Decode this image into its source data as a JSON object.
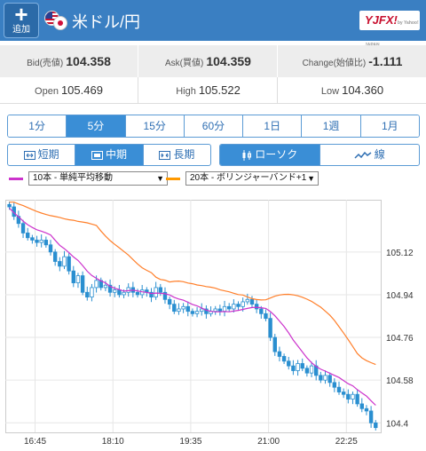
{
  "header": {
    "add_label": "追加",
    "pair_title": "米ドル/円",
    "logo_text": "YJFX!",
    "logo_sub": "by Yahoo! JAPAN",
    "bg_color": "#3a7fc2"
  },
  "quote": {
    "bid_label": "Bid(売値)",
    "bid_value": "104.358",
    "ask_label": "Ask(買値)",
    "ask_value": "104.359",
    "change_label": "Change(始値比)",
    "change_value": "-1.111",
    "open_label": "Open",
    "open_value": "105.469",
    "high_label": "High",
    "high_value": "105.522",
    "low_label": "Low",
    "low_value": "104.360"
  },
  "timeframes": [
    "1分",
    "5分",
    "15分",
    "60分",
    "1日",
    "1週",
    "1月"
  ],
  "timeframe_active": "5分",
  "spans": [
    "短期",
    "中期",
    "長期"
  ],
  "span_active": "中期",
  "chart_types": [
    "ローソク",
    "線"
  ],
  "chart_type_active": "ローソク",
  "indicators": {
    "ma": {
      "value": "10本 - 単純平均移動",
      "color": "#cc33cc"
    },
    "bb": {
      "value": "20本 - ボリンジャーバンド+1",
      "color": "#ff9900"
    }
  },
  "chart_data": {
    "type": "candlestick",
    "x_ticks": [
      "16:45",
      "18:10",
      "19:35",
      "21:00",
      "22:25"
    ],
    "y_ticks": [
      "105.12",
      "104.94",
      "104.76",
      "104.58",
      "104.4"
    ],
    "ylim": [
      104.36,
      105.34
    ],
    "grid": true,
    "up_color": "#ffffff",
    "down_color": "#2a8fd0",
    "ma_color": "#cc33cc",
    "bb_color": "#ff7f2a",
    "close": [
      105.31,
      105.27,
      105.24,
      105.2,
      105.18,
      105.17,
      105.16,
      105.17,
      105.15,
      105.12,
      105.08,
      105.06,
      105.1,
      105.04,
      104.99,
      105.02,
      104.95,
      104.93,
      104.97,
      105.0,
      104.97,
      104.98,
      104.95,
      104.96,
      104.94,
      104.95,
      104.97,
      104.95,
      104.94,
      104.96,
      104.95,
      104.93,
      104.97,
      104.95,
      104.92,
      104.9,
      104.87,
      104.88,
      104.89,
      104.87,
      104.86,
      104.87,
      104.88,
      104.86,
      104.87,
      104.88,
      104.87,
      104.89,
      104.88,
      104.9,
      104.89,
      104.91,
      104.92,
      104.9,
      104.88,
      104.86,
      104.84,
      104.76,
      104.7,
      104.68,
      104.66,
      104.64,
      104.62,
      104.65,
      104.63,
      104.61,
      104.64,
      104.6,
      104.58,
      104.6,
      104.57,
      104.55,
      104.53,
      104.52,
      104.5,
      104.52,
      104.48,
      104.46,
      104.45,
      104.4,
      104.38
    ]
  }
}
